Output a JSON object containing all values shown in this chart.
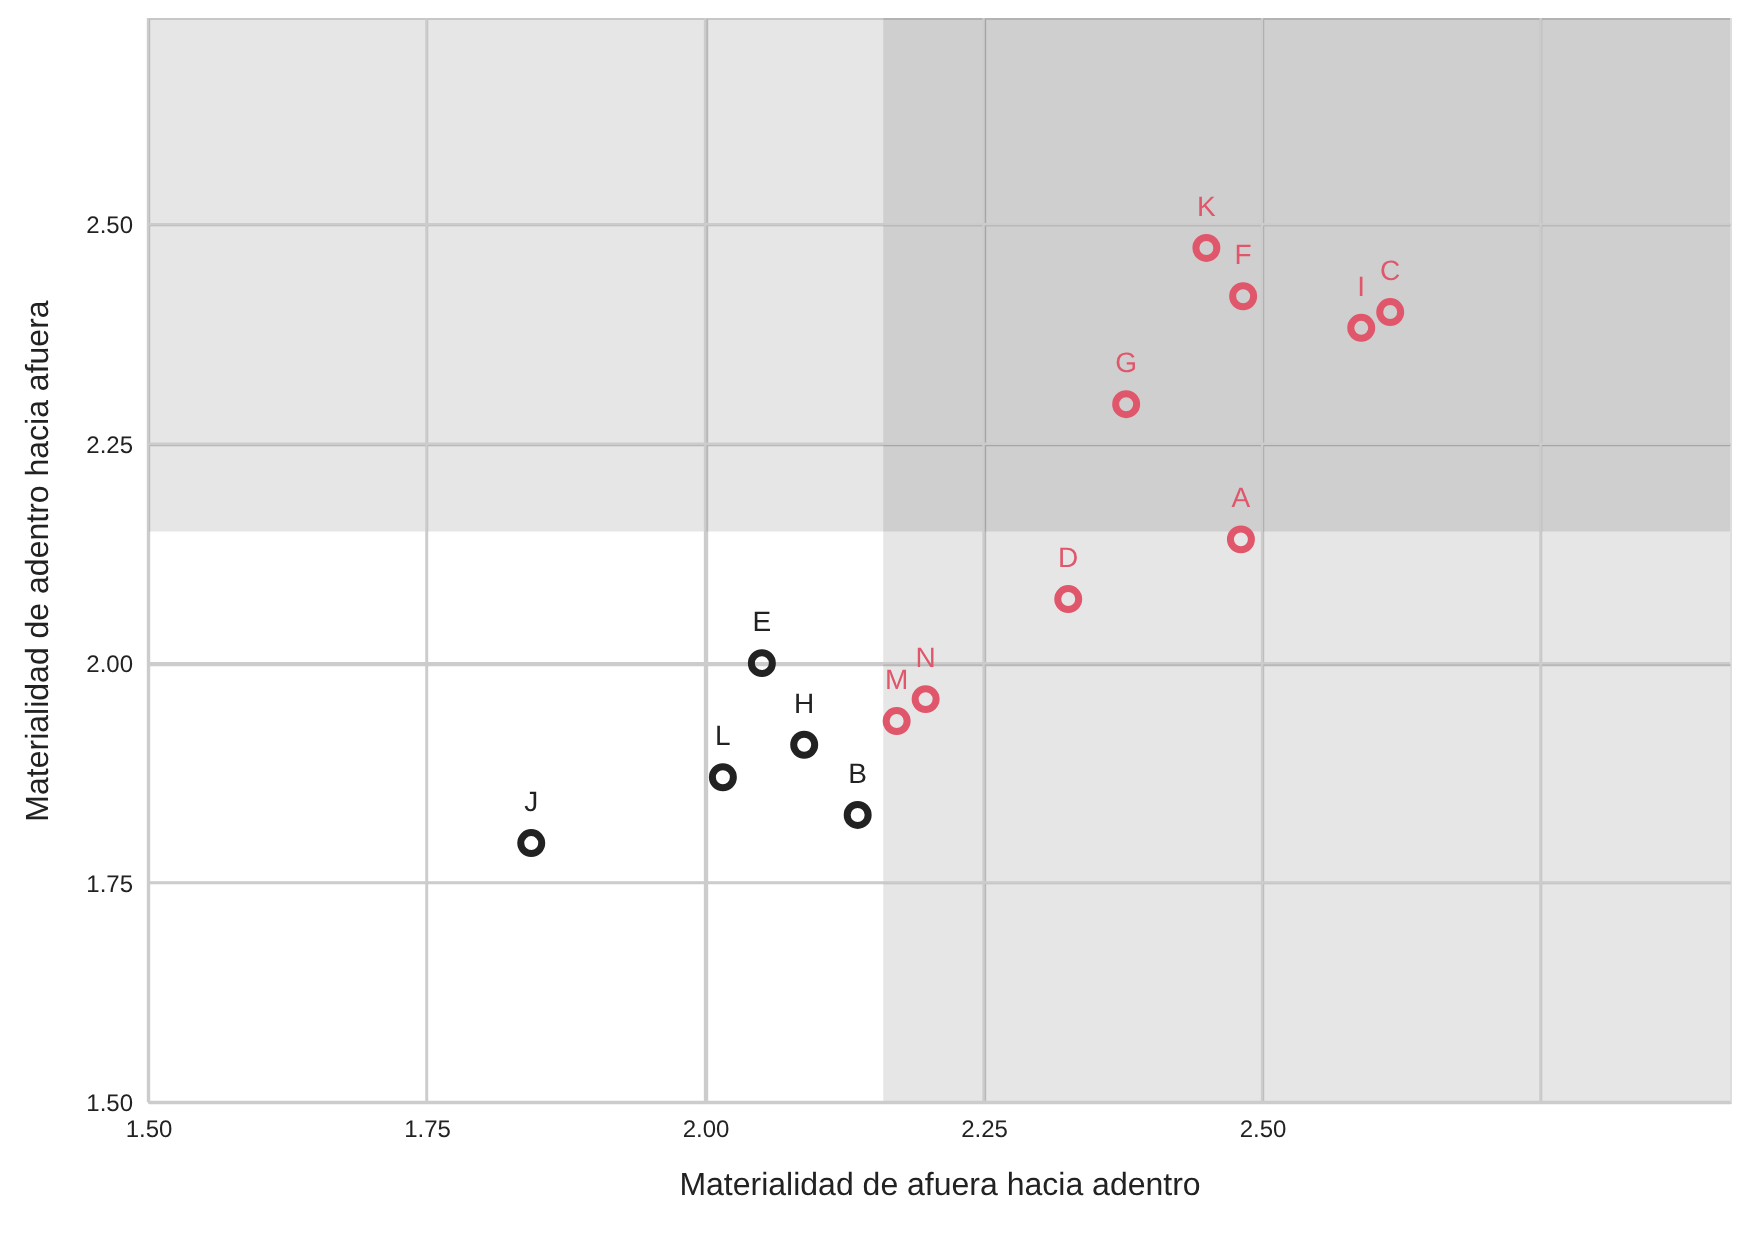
{
  "chart_data": {
    "type": "scatter",
    "xlabel": "Materialidad de afuera hacia adentro",
    "ylabel": "Materialidad de adentro hacia afuera",
    "series": [
      {
        "color": "#222222",
        "x": [
          1.844,
          2.016,
          2.051,
          2.089,
          2.137
        ],
        "values": [
          1.795,
          1.87,
          2.0,
          1.907,
          1.827
        ]
      },
      {
        "color": "#e0566b",
        "x": [
          2.172,
          2.198,
          2.326,
          2.378,
          2.481,
          2.45,
          2.483,
          2.589,
          2.615
        ],
        "values": [
          1.934,
          1.959,
          2.073,
          2.295,
          2.141,
          2.473,
          2.418,
          2.382,
          2.4
        ]
      }
    ],
    "annotations": [
      {
        "text": "J",
        "x": 1.844,
        "y": 1.795
      },
      {
        "text": "L",
        "x": 2.016,
        "y": 1.87
      },
      {
        "text": "E",
        "x": 2.051,
        "y": 2.0
      },
      {
        "text": "H",
        "x": 2.089,
        "y": 1.907
      },
      {
        "text": "B",
        "x": 2.137,
        "y": 1.827
      },
      {
        "text": "M",
        "x": 2.172,
        "y": 1.934
      },
      {
        "text": "N",
        "x": 2.198,
        "y": 1.959
      },
      {
        "text": "D",
        "x": 2.326,
        "y": 2.073
      },
      {
        "text": "G",
        "x": 2.378,
        "y": 2.295
      },
      {
        "text": "A",
        "x": 2.481,
        "y": 2.141
      },
      {
        "text": "K",
        "x": 2.45,
        "y": 2.473
      },
      {
        "text": "F",
        "x": 2.483,
        "y": 2.418
      },
      {
        "text": "I",
        "x": 2.589,
        "y": 2.382
      },
      {
        "text": "C",
        "x": 2.615,
        "y": 2.4
      }
    ],
    "bands": [
      {
        "axis": "y",
        "from": 2.15,
        "to": 2.735,
        "color": "#e6e6e6"
      },
      {
        "axis": "x",
        "from": 2.16,
        "to": 2.92,
        "color": "#e6e6e6"
      }
    ],
    "xlim": [
      1.5,
      2.92
    ],
    "ylim": [
      1.5,
      2.735
    ],
    "xticks": [
      {
        "value": 1.5,
        "label": "1.50"
      },
      1.75,
      {
        "value": 2.0,
        "label": "2.00"
      },
      2.25,
      {
        "value": 2.5,
        "label": "2.50"
      },
      {
        "value": 2.75,
        "label": null
      }
    ],
    "yticks": [
      {
        "value": 1.5,
        "label": "1.50"
      },
      1.75,
      {
        "value": 2.0,
        "label": "2.00"
      },
      2.25,
      {
        "value": 2.5,
        "label": "2.50"
      }
    ],
    "grid": true,
    "marker": "circle"
  }
}
